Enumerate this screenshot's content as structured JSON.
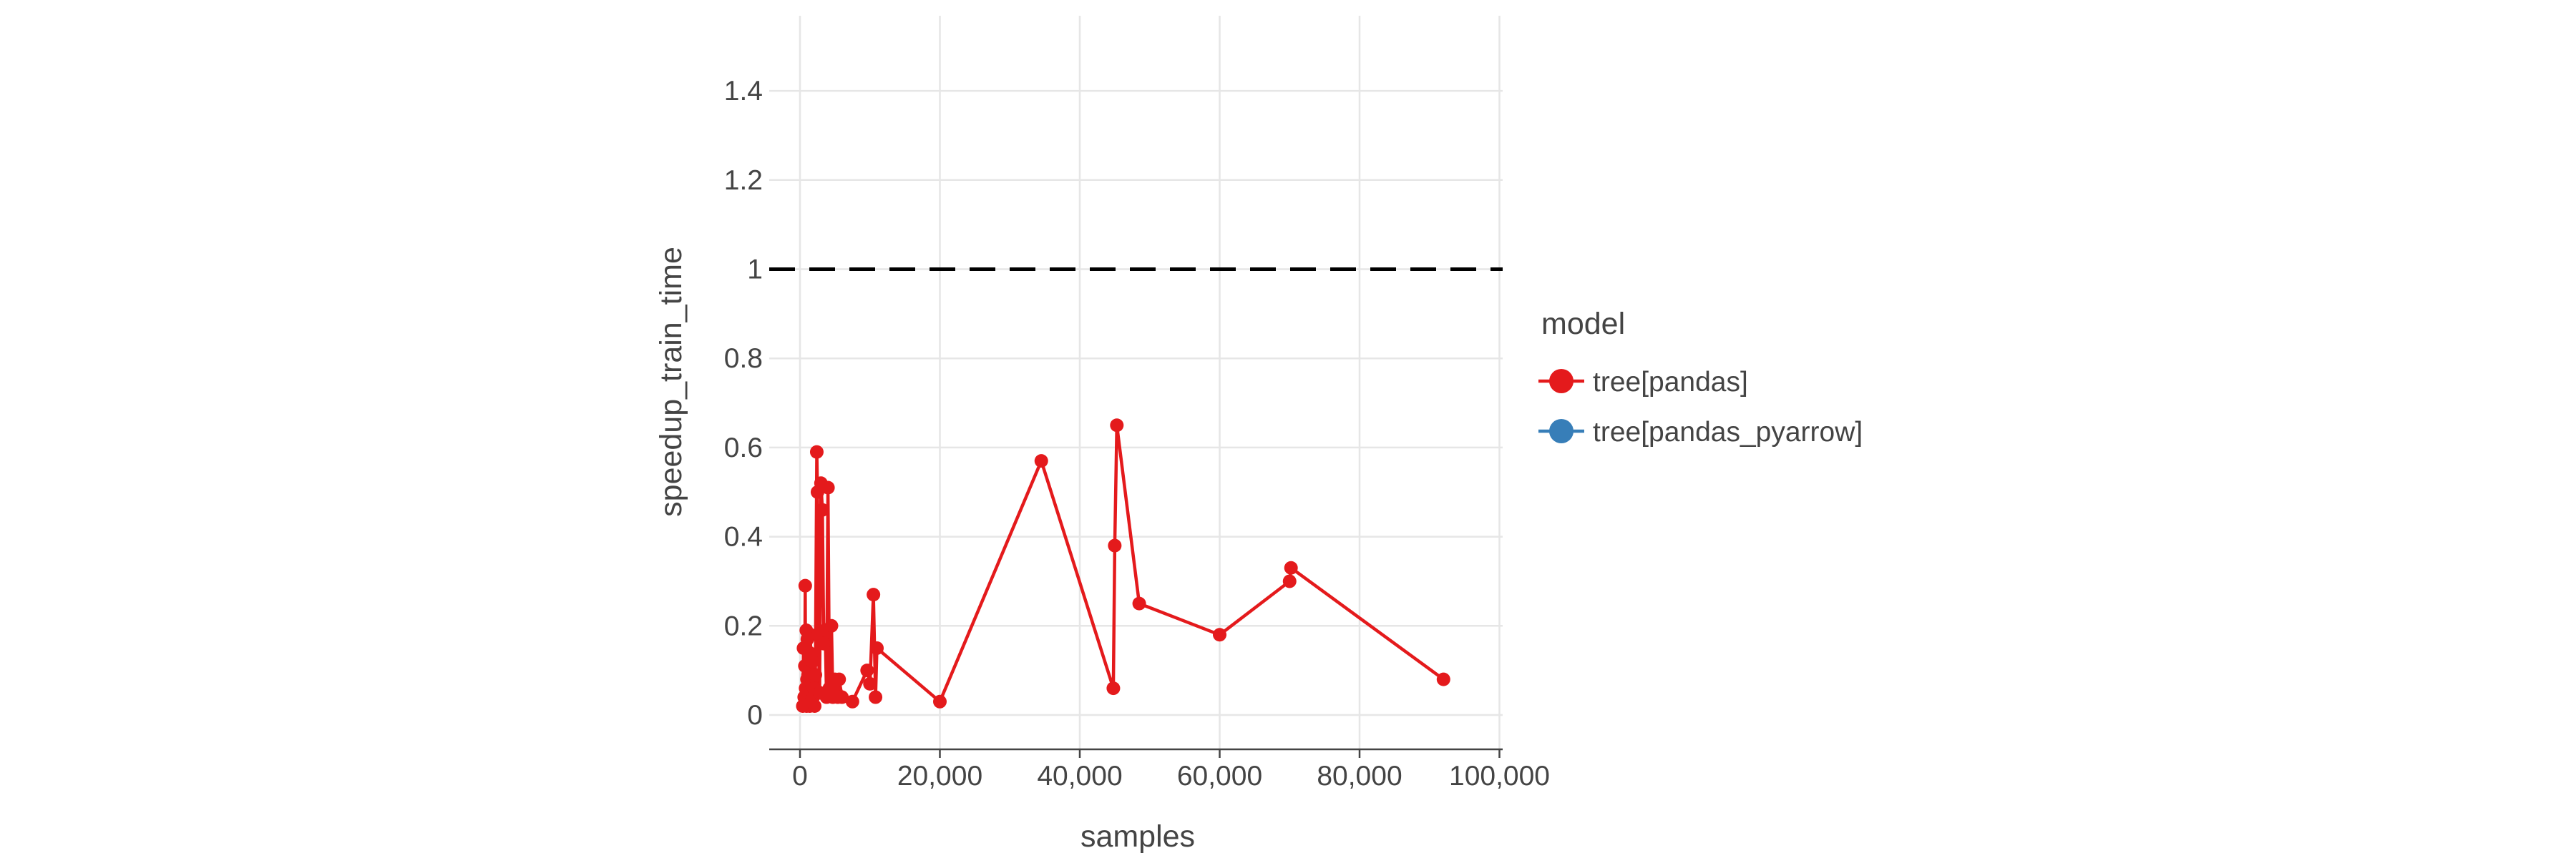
{
  "chart_data": {
    "type": "line",
    "xlabel": "samples",
    "ylabel": "speedup_train_time",
    "xlim": [
      -4000,
      100500
    ],
    "ylim": [
      -0.075,
      1.575
    ],
    "x_ticks": [
      0,
      20000,
      40000,
      60000,
      80000,
      100000
    ],
    "x_tick_labels": [
      "0",
      "20,000",
      "40,000",
      "60,000",
      "80,000",
      "100,000"
    ],
    "y_ticks": [
      0,
      0.2,
      0.4,
      0.6,
      0.8,
      1,
      1.2,
      1.4
    ],
    "y_tick_labels": [
      "0",
      "0.2",
      "0.4",
      "0.6",
      "0.8",
      "1",
      "1.2",
      "1.4"
    ],
    "grid": true,
    "reference_line": {
      "y": 1,
      "style": "dashed",
      "color": "#000000"
    },
    "legend": {
      "title": "model",
      "placement": "right",
      "entries": [
        {
          "label": "tree[pandas]",
          "color": "#e41a1c"
        },
        {
          "label": "tree[pandas_pyarrow]",
          "color": "#377eb8"
        }
      ]
    },
    "series": [
      {
        "name": "tree[pandas]",
        "color": "#e41a1c",
        "x": [
          400,
          500,
          600,
          700,
          750,
          800,
          900,
          950,
          1000,
          1050,
          1100,
          1150,
          1200,
          1300,
          1400,
          1500,
          1600,
          1700,
          1800,
          1900,
          2000,
          2100,
          2200,
          2400,
          2500,
          2600,
          2800,
          3000,
          3200,
          3400,
          3600,
          3800,
          4000,
          4200,
          4500,
          4700,
          5000,
          5200,
          5400,
          5600,
          6000,
          7500,
          9600,
          10000,
          10500,
          10800,
          11000,
          20000,
          34500,
          44800,
          45000,
          45300,
          48500,
          60000,
          70000,
          70200,
          92000
        ],
        "y": [
          0.02,
          0.15,
          0.04,
          0.11,
          0.29,
          0.06,
          0.19,
          0.02,
          0.08,
          0.17,
          0.03,
          0.09,
          0.05,
          0.14,
          0.02,
          0.18,
          0.03,
          0.07,
          0.12,
          0.04,
          0.06,
          0.02,
          0.09,
          0.59,
          0.5,
          0.18,
          0.05,
          0.52,
          0.46,
          0.16,
          0.19,
          0.04,
          0.51,
          0.06,
          0.2,
          0.04,
          0.08,
          0.05,
          0.04,
          0.08,
          0.04,
          0.03,
          0.1,
          0.07,
          0.27,
          0.04,
          0.15,
          0.03,
          0.57,
          0.06,
          0.38,
          0.65,
          0.25,
          0.18,
          0.3,
          0.33,
          0.08
        ]
      }
    ]
  }
}
